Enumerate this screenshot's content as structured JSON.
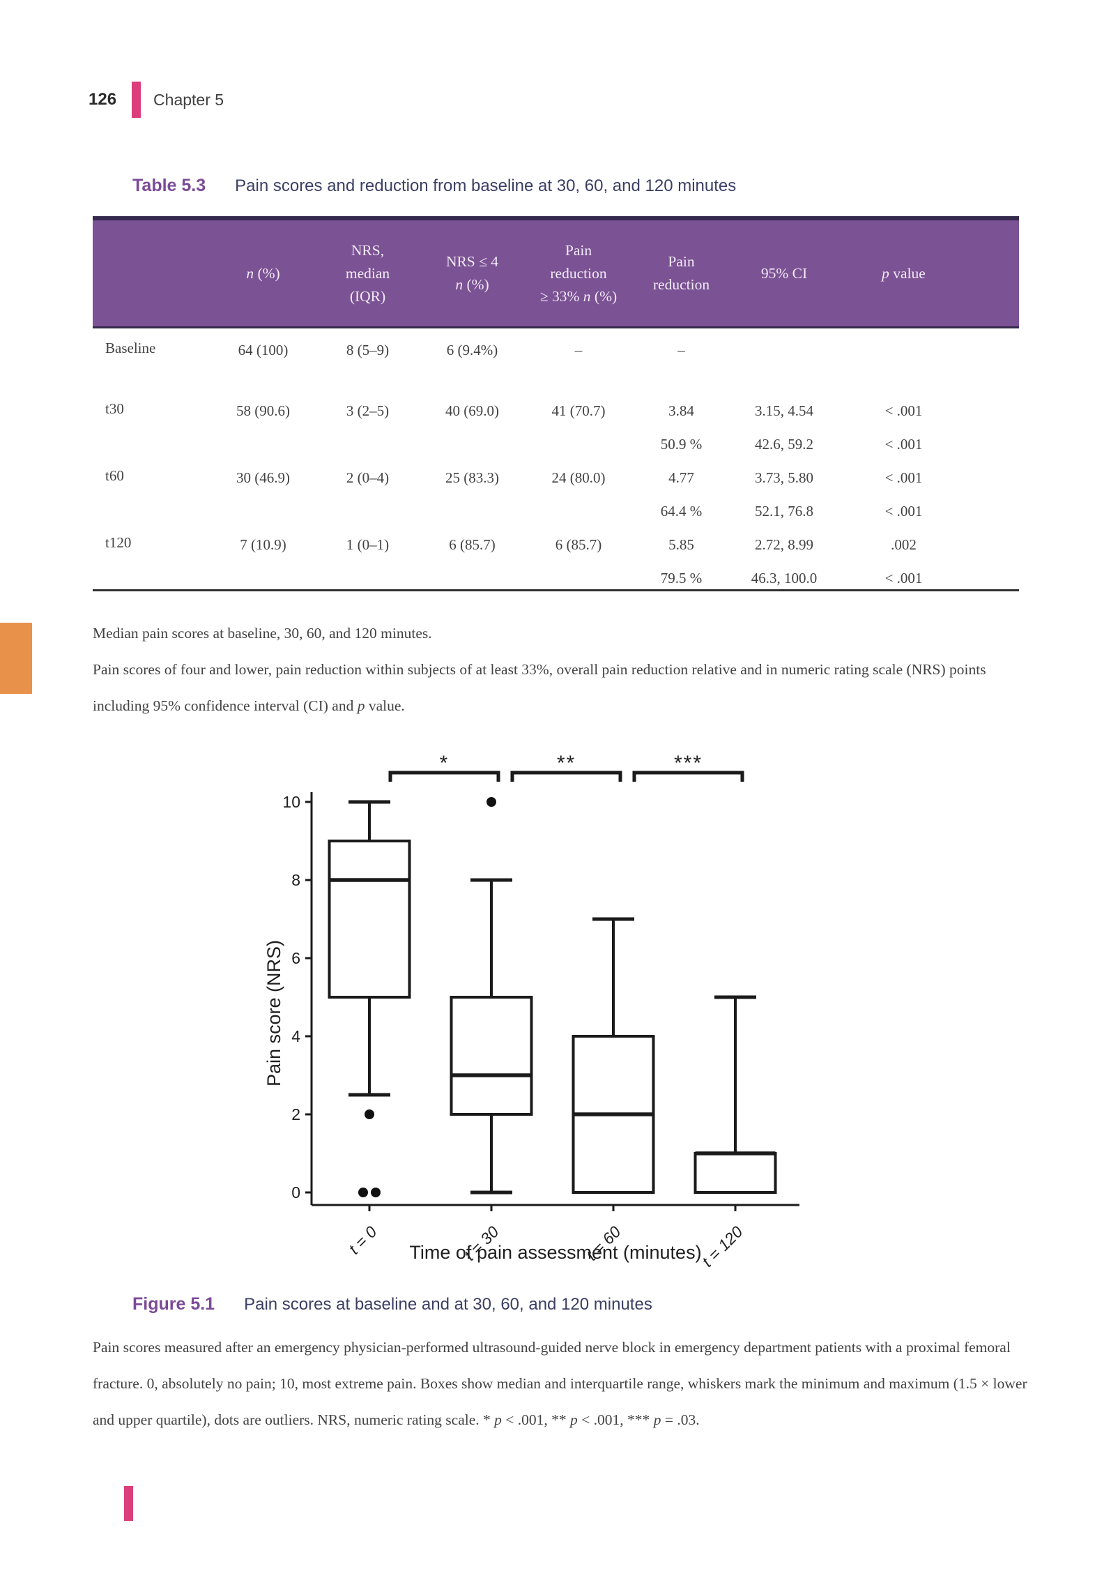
{
  "page": {
    "number": "126",
    "chapter": "Chapter 5"
  },
  "colors": {
    "accent_pink": "#DB3E7B",
    "table_header_purple": "#7B5294",
    "table_header_border": "#352A4E",
    "label_purple": "#7C4A97",
    "heading_text": "#3A3F63",
    "body_text": "#424242",
    "side_tab_orange": "#E8914A",
    "chart_ink": "#1A1A1A"
  },
  "table": {
    "label": "Table 5.3",
    "title": "Pain scores and reduction from baseline at 30, 60, and 120 minutes",
    "header": [
      [
        ""
      ],
      [
        "n (%)"
      ],
      [
        "NRS,",
        "median",
        "(IQR)"
      ],
      [
        "NRS ≤ 4",
        "n (%)"
      ],
      [
        "Pain",
        "reduction",
        "≥ 33% n (%)"
      ],
      [
        "Pain",
        "reduction"
      ],
      [
        "95% CI"
      ],
      [
        "p value"
      ]
    ],
    "rows": [
      {
        "label": "Baseline",
        "cells": [
          [
            "64 (100)"
          ],
          [
            "8 (5–9)"
          ],
          [
            "6 (9.4%)"
          ],
          [
            "–"
          ],
          [
            "–"
          ],
          [],
          []
        ]
      },
      {
        "label": "t30",
        "cells": [
          [
            "58 (90.6)"
          ],
          [
            "3 (2–5)"
          ],
          [
            "40 (69.0)"
          ],
          [
            "41 (70.7)"
          ],
          [
            "3.84",
            "50.9 %"
          ],
          [
            "3.15, 4.54",
            "42.6, 59.2"
          ],
          [
            "< .001",
            "< .001"
          ]
        ]
      },
      {
        "label": "t60",
        "cells": [
          [
            "30 (46.9)"
          ],
          [
            "2 (0–4)"
          ],
          [
            "25 (83.3)"
          ],
          [
            "24 (80.0)"
          ],
          [
            "4.77",
            "64.4 %"
          ],
          [
            "3.73, 5.80",
            "52.1, 76.8"
          ],
          [
            "< .001",
            "< .001"
          ]
        ]
      },
      {
        "label": "t120",
        "cells": [
          [
            "7 (10.9)"
          ],
          [
            "1 (0–1)"
          ],
          [
            "6 (85.7)"
          ],
          [
            "6 (85.7)"
          ],
          [
            "5.85",
            "79.5 %"
          ],
          [
            "2.72, 8.99",
            "46.3, 100.0"
          ],
          [
            ".002",
            "< .001"
          ]
        ]
      }
    ],
    "notes": [
      "Median pain scores at baseline, 30, 60, and 120 minutes.",
      "Pain scores of four and lower, pain reduction within subjects of at least 33%, overall pain reduction relative and in numeric rating scale (NRS) points including 95% confidence interval (CI) and p value."
    ]
  },
  "figure": {
    "label": "Figure 5.1",
    "title": "Pain scores at baseline and at 30, 60, and 120 minutes",
    "description": "Pain scores measured after an emergency physician-performed ultrasound-guided nerve block in emergency department patients with a proximal femoral fracture. 0, absolutely no pain; 10, most extreme pain. Boxes show median and interquartile range, whiskers mark the minimum and maximum (1.5 × lower and upper quartile), dots are outliers. NRS, numeric rating scale. * p < .001, ** p < .001, *** p = .03."
  },
  "chart_data": {
    "type": "boxplot",
    "title": "",
    "xlabel": "Time of pain assessment (minutes)",
    "ylabel": "Pain score (NRS)",
    "ylim": [
      0,
      10
    ],
    "yticks": [
      0,
      2,
      4,
      6,
      8,
      10
    ],
    "grid": false,
    "legend": null,
    "categories": [
      "t = 0",
      "t = 30",
      "t = 60",
      "t = 120"
    ],
    "boxes": [
      {
        "category": "t = 0",
        "q1": 5,
        "median": 8,
        "q3": 9,
        "whisker_low": 2.5,
        "whisker_high": 10,
        "outliers": [
          2,
          0,
          0
        ]
      },
      {
        "category": "t = 30",
        "q1": 2,
        "median": 3,
        "q3": 5,
        "whisker_low": 0,
        "whisker_high": 8,
        "outliers": [
          10
        ]
      },
      {
        "category": "t = 60",
        "q1": 0,
        "median": 2,
        "q3": 4,
        "whisker_low": 0,
        "whisker_high": 7,
        "outliers": []
      },
      {
        "category": "t = 120",
        "q1": 0,
        "median": 1,
        "q3": 1,
        "whisker_low": 0,
        "whisker_high": 5,
        "outliers": []
      }
    ],
    "significance": [
      {
        "between": [
          "t = 0",
          "t = 30"
        ],
        "label": "*"
      },
      {
        "between": [
          "t = 30",
          "t = 60"
        ],
        "label": "**"
      },
      {
        "between": [
          "t = 60",
          "t = 120"
        ],
        "label": "***"
      }
    ]
  }
}
